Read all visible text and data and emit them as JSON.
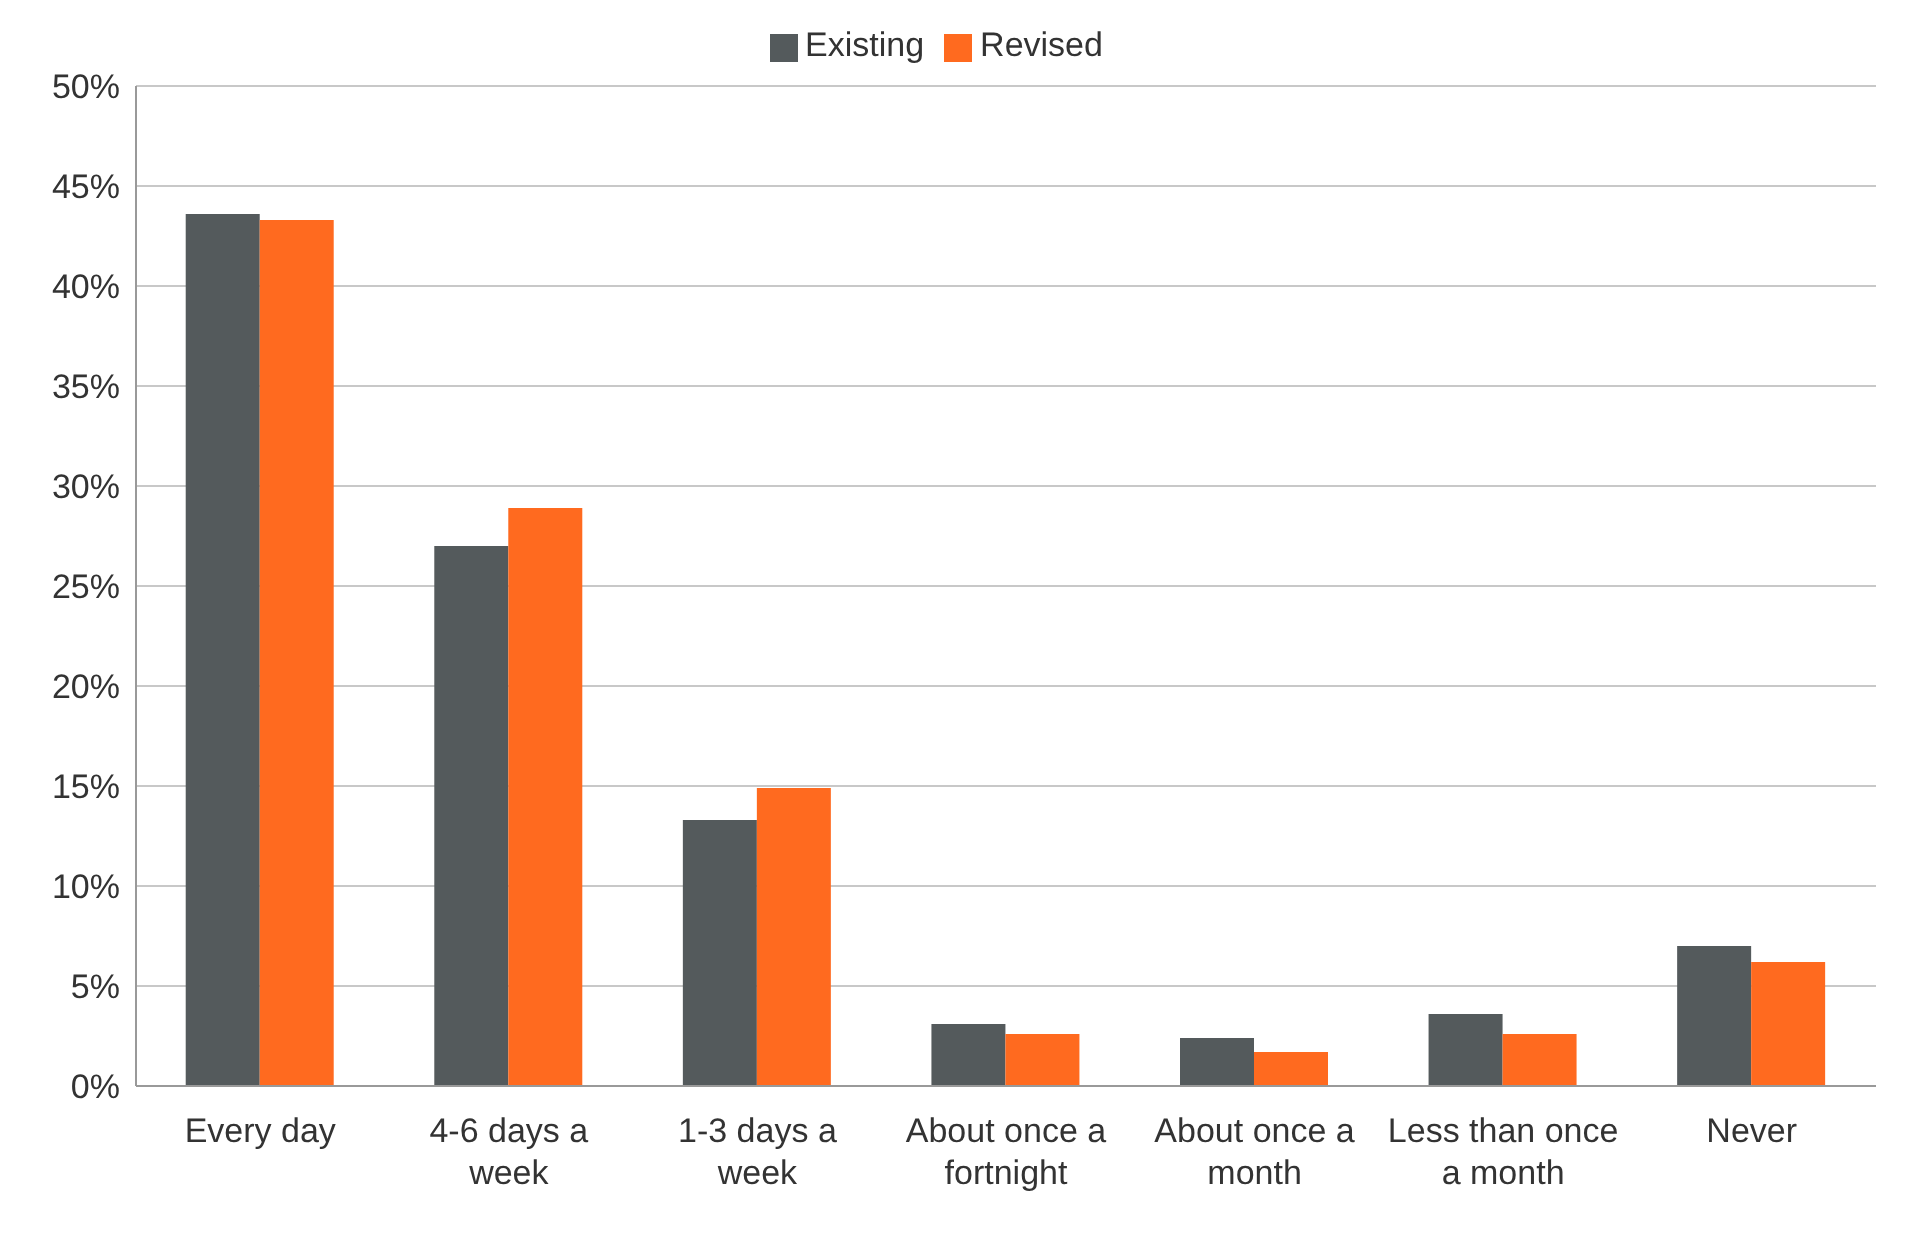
{
  "chart_data": {
    "type": "bar",
    "categories": [
      "Every day",
      "4-6 days a week",
      "1-3 days a week",
      "About once a fortnight",
      "About once a month",
      "Less than once a month",
      "Never"
    ],
    "series": [
      {
        "name": "Existing",
        "color": "#545a5c",
        "values": [
          43.6,
          27.0,
          13.3,
          3.1,
          2.4,
          3.6,
          7.0
        ]
      },
      {
        "name": "Revised",
        "color": "#ff6a1f",
        "values": [
          43.3,
          28.9,
          14.9,
          2.6,
          1.7,
          2.6,
          6.2
        ]
      }
    ],
    "ylim": [
      0,
      50
    ],
    "yticks": [
      {
        "value": 0,
        "label": "0%"
      },
      {
        "value": 5,
        "label": "5%"
      },
      {
        "value": 10,
        "label": "10%"
      },
      {
        "value": 15,
        "label": "15%"
      },
      {
        "value": 20,
        "label": "20%"
      },
      {
        "value": 25,
        "label": "25%"
      },
      {
        "value": 30,
        "label": "30%"
      },
      {
        "value": 35,
        "label": "35%"
      },
      {
        "value": 40,
        "label": "40%"
      },
      {
        "value": 45,
        "label": "45%"
      },
      {
        "value": 50,
        "label": "50%"
      }
    ],
    "grid": "y",
    "legend": "top"
  }
}
